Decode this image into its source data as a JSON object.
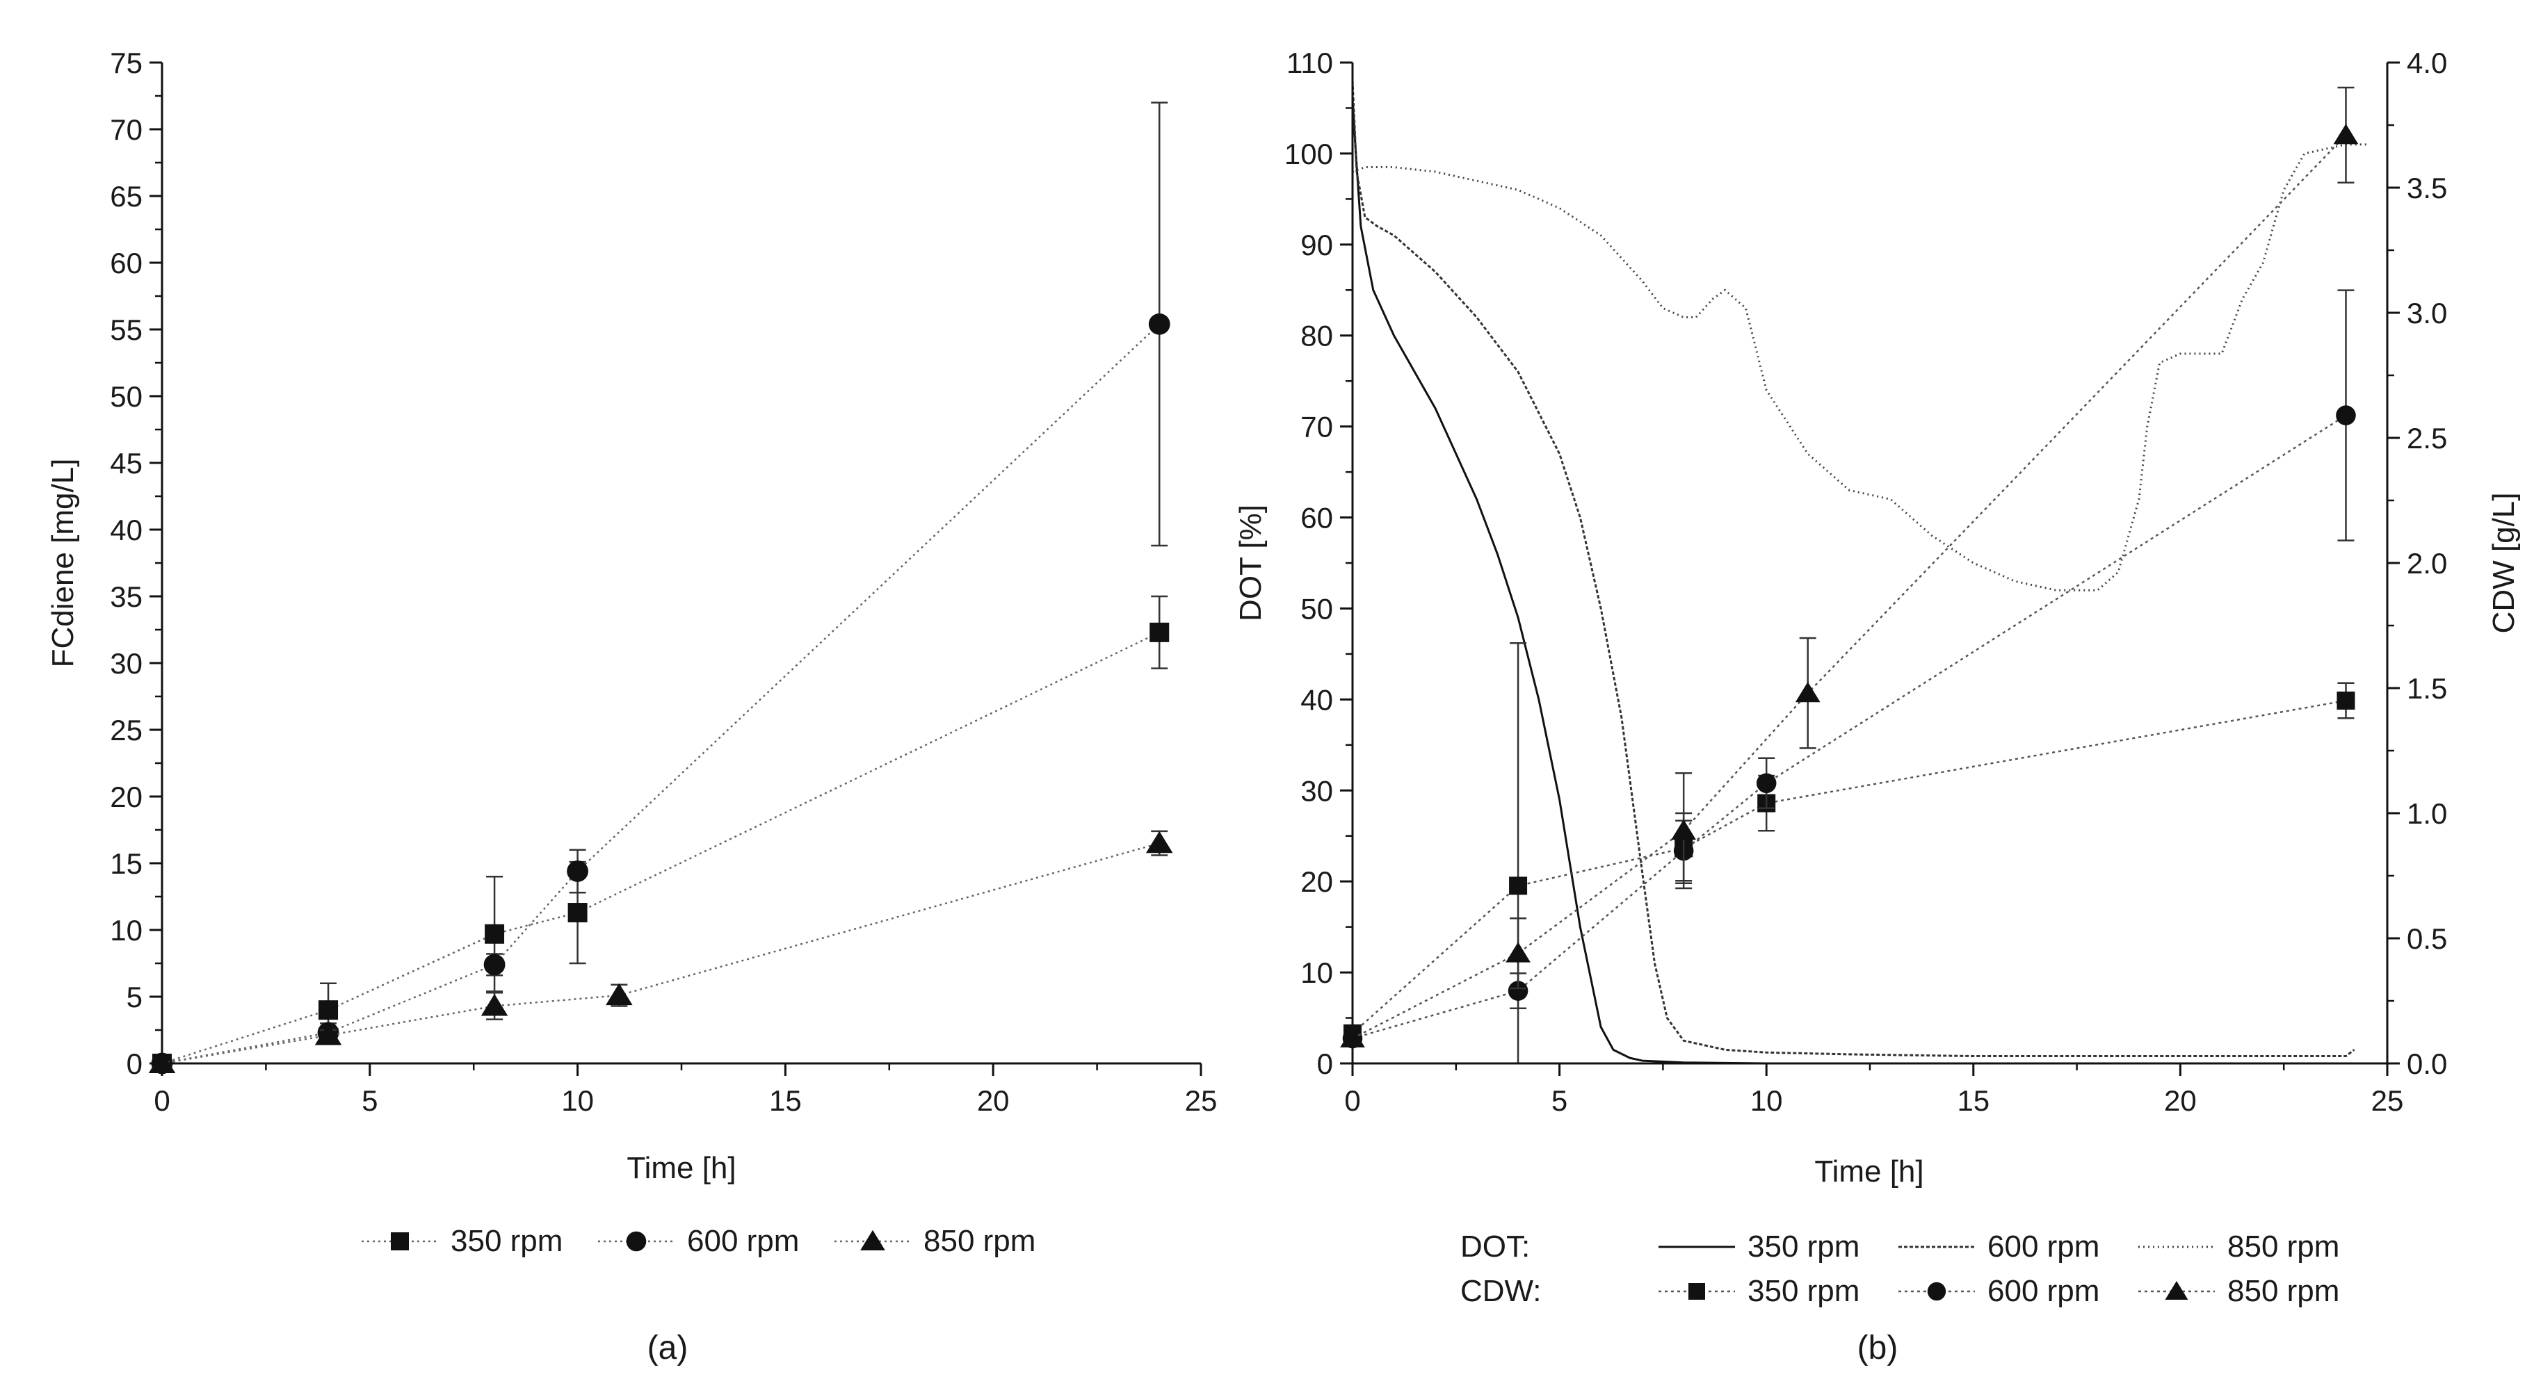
{
  "chart_data": [
    {
      "panel_label": "(a)",
      "type": "scatter",
      "xlabel": "Time [h]",
      "ylabel": "FCdiene [mg/L]",
      "xlim": [
        0,
        25
      ],
      "ylim": [
        0,
        75
      ],
      "x_ticks": [
        0,
        5,
        10,
        15,
        20,
        25
      ],
      "y_ticks": [
        0,
        5,
        10,
        15,
        20,
        25,
        30,
        35,
        40,
        45,
        50,
        55,
        60,
        65,
        70,
        75
      ],
      "legend": [
        "350 rpm",
        "600 rpm",
        "850 rpm"
      ],
      "series": [
        {
          "name": "350 rpm",
          "marker": "square",
          "x": [
            0,
            4,
            8,
            10,
            24
          ],
          "y": [
            0,
            4.0,
            9.7,
            11.3,
            32.3
          ],
          "err": [
            0,
            2.0,
            4.3,
            3.8,
            2.7
          ]
        },
        {
          "name": "600 rpm",
          "marker": "circle",
          "x": [
            0,
            4,
            8,
            10,
            24
          ],
          "y": [
            0,
            2.3,
            7.4,
            14.4,
            55.4
          ],
          "err": [
            0,
            0.7,
            0.8,
            1.6,
            16.6
          ]
        },
        {
          "name": "850 rpm",
          "marker": "triangle",
          "x": [
            0,
            4,
            8,
            11,
            24
          ],
          "y": [
            0,
            2.1,
            4.3,
            5.1,
            16.5
          ],
          "err": [
            0,
            0.4,
            1.0,
            0.8,
            0.9
          ]
        }
      ]
    },
    {
      "panel_label": "(b)",
      "type": "line",
      "xlabel": "Time [h]",
      "ylabel_left": "DOT [%]",
      "ylabel_right": "CDW [g/L]",
      "xlim": [
        0,
        25
      ],
      "ylim_left": [
        0,
        110
      ],
      "ylim_right": [
        0,
        4.0
      ],
      "x_ticks": [
        0,
        5,
        10,
        15,
        20,
        25
      ],
      "y_ticks_left": [
        0,
        10,
        20,
        30,
        40,
        50,
        60,
        70,
        80,
        90,
        100,
        110
      ],
      "y_ticks_right": [
        "0.0",
        "0.5",
        "1.0",
        "1.5",
        "2.0",
        "2.5",
        "3.0",
        "3.5",
        "4.0"
      ],
      "legend_dot_label": "DOT:",
      "legend_cdw_label": "CDW:",
      "dot_series": [
        {
          "name": "350 rpm",
          "x": [
            0,
            0.08,
            0.2,
            0.5,
            1,
            1.5,
            2,
            2.5,
            3,
            3.5,
            4,
            4.5,
            5,
            5.5,
            6,
            6.3,
            6.7,
            7,
            8,
            10,
            25
          ],
          "y": [
            106,
            100,
            92,
            85,
            80,
            76,
            72,
            67,
            62,
            56,
            49,
            40,
            29,
            15,
            4,
            1.5,
            0.6,
            0.3,
            0.1,
            0,
            0
          ]
        },
        {
          "name": "600 rpm",
          "x": [
            0,
            0.1,
            0.3,
            0.6,
            1,
            2,
            3,
            4,
            5,
            5.5,
            6,
            6.5,
            7,
            7.3,
            7.6,
            8,
            9,
            10,
            12,
            15,
            20,
            24,
            24.2
          ],
          "y": [
            108,
            98,
            93,
            92,
            91,
            87,
            82,
            76,
            67,
            60,
            50,
            38,
            21,
            11,
            5,
            2.5,
            1.5,
            1.2,
            1.0,
            0.8,
            0.8,
            0.8,
            1.5
          ]
        },
        {
          "name": "850 rpm",
          "x": [
            0,
            0.3,
            1,
            2,
            3,
            4,
            5,
            6,
            7,
            7.5,
            8,
            8.3,
            8.7,
            9,
            9.5,
            10,
            11,
            12,
            13,
            14,
            15,
            16,
            17,
            18,
            18.5,
            19,
            19.2,
            19.5,
            20,
            21,
            21.5,
            22,
            22.5,
            23,
            24,
            24.5
          ],
          "y": [
            98,
            98.5,
            98.5,
            98,
            97,
            96,
            94,
            91,
            86,
            83,
            82,
            82,
            84,
            85,
            83,
            74,
            67,
            63,
            62,
            58,
            55,
            53,
            52,
            52,
            54,
            62,
            70,
            77,
            78,
            78,
            84,
            88,
            96,
            100,
            101,
            101
          ]
        }
      ],
      "cdw_series": [
        {
          "name": "350 rpm",
          "marker": "square",
          "x": [
            0,
            4,
            8,
            10,
            24
          ],
          "y": [
            0.12,
            0.71,
            0.86,
            1.04,
            1.45
          ],
          "err": [
            0.02,
            0.97,
            0.14,
            0.11,
            0.07
          ]
        },
        {
          "name": "600 rpm",
          "marker": "circle",
          "x": [
            0,
            4,
            8,
            10,
            24
          ],
          "y": [
            0.1,
            0.29,
            0.85,
            1.12,
            2.59
          ],
          "err": [
            0.02,
            0.07,
            0.12,
            0.1,
            0.5
          ]
        },
        {
          "name": "850 rpm",
          "marker": "triangle",
          "x": [
            0,
            4,
            8,
            11,
            24
          ],
          "y": [
            0.1,
            0.44,
            0.93,
            1.48,
            3.71
          ],
          "err": [
            0.02,
            0.14,
            0.23,
            0.22,
            0.19
          ]
        }
      ]
    }
  ]
}
